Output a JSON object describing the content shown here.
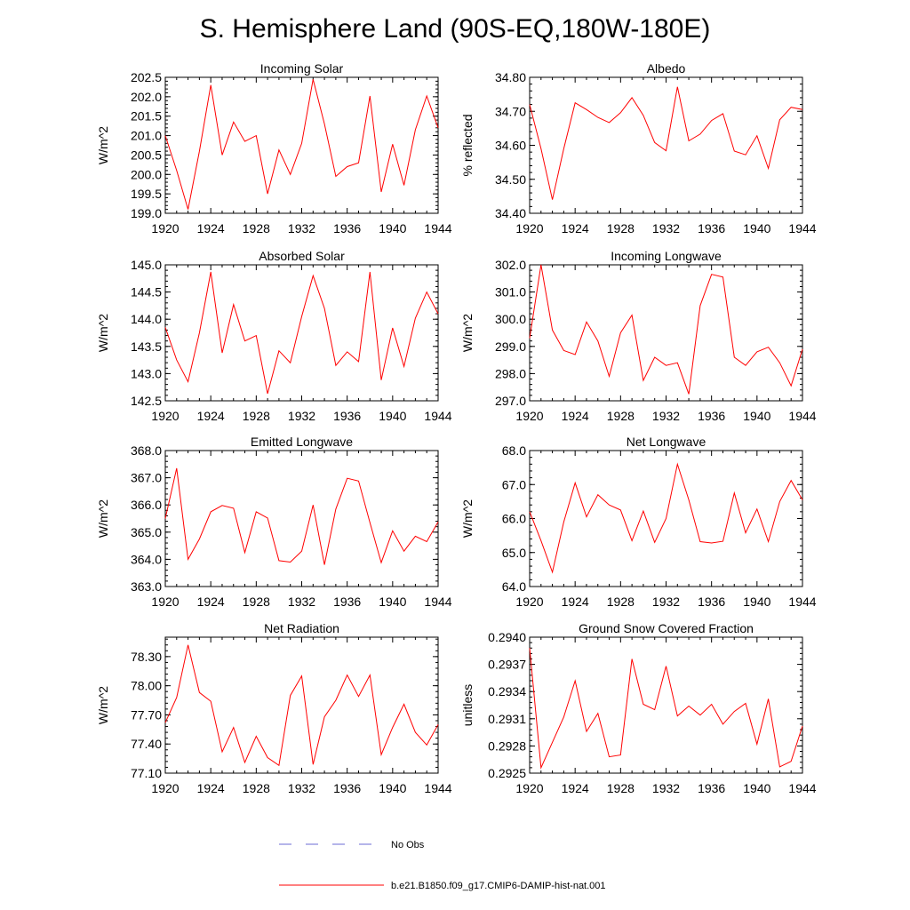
{
  "figure": {
    "title": "S. Hemisphere Land (90S-EQ,180W-180E)"
  },
  "legend": {
    "items": [
      {
        "label": "No Obs",
        "color": "#6b6bd6",
        "dashed": true
      },
      {
        "label": "b.e21.B1850.f09_g17.CMIP6-DAMIP-hist-nat.001",
        "color": "#ff0000",
        "dashed": false
      }
    ]
  },
  "chart_data": [
    {
      "type": "line",
      "title": "Incoming Solar",
      "ylabel": "W/m^2",
      "xlabel": "",
      "x": [
        1920,
        1921,
        1922,
        1923,
        1924,
        1925,
        1926,
        1927,
        1928,
        1929,
        1930,
        1931,
        1932,
        1933,
        1934,
        1935,
        1936,
        1937,
        1938,
        1939,
        1940,
        1941,
        1942,
        1943,
        1944
      ],
      "xlim": [
        1920,
        1944
      ],
      "xticks": [
        1920,
        1924,
        1928,
        1932,
        1936,
        1940,
        1944
      ],
      "ylim": [
        199.0,
        202.5
      ],
      "yticks": [
        199.0,
        199.5,
        200.0,
        200.5,
        201.0,
        201.5,
        202.0,
        202.5
      ],
      "yticklabels": [
        "199.0",
        "199.5",
        "200.0",
        "200.5",
        "201.0",
        "201.5",
        "202.0",
        "202.5"
      ],
      "series": [
        {
          "color": "#ff0000",
          "values": [
            201.0,
            200.1,
            199.1,
            200.6,
            202.3,
            200.5,
            201.35,
            200.85,
            201.0,
            199.5,
            200.63,
            200.0,
            200.8,
            202.45,
            201.3,
            199.95,
            200.2,
            200.3,
            202.02,
            199.55,
            200.78,
            199.72,
            201.15,
            202.02,
            201.2
          ]
        }
      ]
    },
    {
      "type": "line",
      "title": "Albedo",
      "ylabel": "% reflected",
      "xlabel": "",
      "x": [
        1920,
        1921,
        1922,
        1923,
        1924,
        1925,
        1926,
        1927,
        1928,
        1929,
        1930,
        1931,
        1932,
        1933,
        1934,
        1935,
        1936,
        1937,
        1938,
        1939,
        1940,
        1941,
        1942,
        1943,
        1944
      ],
      "xlim": [
        1920,
        1944
      ],
      "xticks": [
        1920,
        1924,
        1928,
        1932,
        1936,
        1940,
        1944
      ],
      "ylim": [
        34.4,
        34.8
      ],
      "yticks": [
        34.4,
        34.5,
        34.6,
        34.7,
        34.8
      ],
      "yticklabels": [
        "34.40",
        "34.50",
        "34.60",
        "34.70",
        "34.80"
      ],
      "series": [
        {
          "color": "#ff0000",
          "values": [
            34.72,
            34.59,
            34.44,
            34.59,
            34.725,
            34.705,
            34.682,
            34.667,
            34.696,
            34.74,
            34.688,
            34.608,
            34.584,
            34.772,
            34.613,
            34.633,
            34.673,
            34.693,
            34.583,
            34.572,
            34.628,
            34.532,
            34.675,
            34.712,
            34.705
          ]
        }
      ]
    },
    {
      "type": "line",
      "title": "Absorbed Solar",
      "ylabel": "W/m^2",
      "xlabel": "",
      "x": [
        1920,
        1921,
        1922,
        1923,
        1924,
        1925,
        1926,
        1927,
        1928,
        1929,
        1930,
        1931,
        1932,
        1933,
        1934,
        1935,
        1936,
        1937,
        1938,
        1939,
        1940,
        1941,
        1942,
        1943,
        1944
      ],
      "xlim": [
        1920,
        1944
      ],
      "xticks": [
        1920,
        1924,
        1928,
        1932,
        1936,
        1940,
        1944
      ],
      "ylim": [
        142.5,
        145.0
      ],
      "yticks": [
        142.5,
        143.0,
        143.5,
        144.0,
        144.5,
        145.0
      ],
      "yticklabels": [
        "142.5",
        "143.0",
        "143.5",
        "144.0",
        "144.5",
        "145.0"
      ],
      "series": [
        {
          "color": "#ff0000",
          "values": [
            143.85,
            143.25,
            142.85,
            143.75,
            144.87,
            143.38,
            144.27,
            143.6,
            143.7,
            142.63,
            143.42,
            143.2,
            144.05,
            144.8,
            144.2,
            143.15,
            143.4,
            143.22,
            144.87,
            142.88,
            143.84,
            143.13,
            144.02,
            144.5,
            144.1
          ]
        }
      ]
    },
    {
      "type": "line",
      "title": "Incoming Longwave",
      "ylabel": "W/m^2",
      "xlabel": "",
      "x": [
        1920,
        1921,
        1922,
        1923,
        1924,
        1925,
        1926,
        1927,
        1928,
        1929,
        1930,
        1931,
        1932,
        1933,
        1934,
        1935,
        1936,
        1937,
        1938,
        1939,
        1940,
        1941,
        1942,
        1943,
        1944
      ],
      "xlim": [
        1920,
        1944
      ],
      "xticks": [
        1920,
        1924,
        1928,
        1932,
        1936,
        1940,
        1944
      ],
      "ylim": [
        297.0,
        302.0
      ],
      "yticks": [
        297.0,
        298.0,
        299.0,
        300.0,
        301.0,
        302.0
      ],
      "yticklabels": [
        "297.0",
        "298.0",
        "299.0",
        "300.0",
        "301.0",
        "302.0"
      ],
      "series": [
        {
          "color": "#ff0000",
          "values": [
            299.3,
            302.0,
            299.6,
            298.85,
            298.7,
            299.9,
            299.2,
            297.9,
            299.5,
            300.15,
            297.75,
            298.6,
            298.3,
            298.4,
            297.25,
            300.5,
            301.65,
            301.55,
            298.6,
            298.3,
            298.8,
            298.97,
            298.4,
            297.55,
            298.9
          ]
        }
      ]
    },
    {
      "type": "line",
      "title": "Emitted Longwave",
      "ylabel": "W/m^2",
      "xlabel": "",
      "x": [
        1920,
        1921,
        1922,
        1923,
        1924,
        1925,
        1926,
        1927,
        1928,
        1929,
        1930,
        1931,
        1932,
        1933,
        1934,
        1935,
        1936,
        1937,
        1938,
        1939,
        1940,
        1941,
        1942,
        1943,
        1944
      ],
      "xlim": [
        1920,
        1944
      ],
      "xticks": [
        1920,
        1924,
        1928,
        1932,
        1936,
        1940,
        1944
      ],
      "ylim": [
        363.0,
        368.0
      ],
      "yticks": [
        363.0,
        364.0,
        365.0,
        366.0,
        367.0,
        368.0
      ],
      "yticklabels": [
        "363.0",
        "364.0",
        "365.0",
        "366.0",
        "367.0",
        "368.0"
      ],
      "series": [
        {
          "color": "#ff0000",
          "values": [
            365.5,
            367.35,
            364.0,
            364.75,
            365.75,
            365.98,
            365.88,
            364.25,
            365.75,
            365.52,
            363.95,
            363.9,
            364.3,
            366.0,
            363.8,
            365.85,
            366.98,
            366.88,
            365.35,
            363.88,
            365.05,
            364.3,
            364.85,
            364.65,
            365.38
          ]
        }
      ]
    },
    {
      "type": "line",
      "title": "Net Longwave",
      "ylabel": "W/m^2",
      "xlabel": "",
      "x": [
        1920,
        1921,
        1922,
        1923,
        1924,
        1925,
        1926,
        1927,
        1928,
        1929,
        1930,
        1931,
        1932,
        1933,
        1934,
        1935,
        1936,
        1937,
        1938,
        1939,
        1940,
        1941,
        1942,
        1943,
        1944
      ],
      "xlim": [
        1920,
        1944
      ],
      "xticks": [
        1920,
        1924,
        1928,
        1932,
        1936,
        1940,
        1944
      ],
      "ylim": [
        64.0,
        68.0
      ],
      "yticks": [
        64.0,
        65.0,
        66.0,
        67.0,
        68.0
      ],
      "yticklabels": [
        "64.0",
        "65.0",
        "66.0",
        "67.0",
        "68.0"
      ],
      "series": [
        {
          "color": "#ff0000",
          "values": [
            66.2,
            65.35,
            64.42,
            65.9,
            67.05,
            66.05,
            66.7,
            66.4,
            66.25,
            65.35,
            66.22,
            65.3,
            66.0,
            67.6,
            66.55,
            65.32,
            65.28,
            65.33,
            66.75,
            65.58,
            66.28,
            65.32,
            66.5,
            67.12,
            66.55
          ]
        }
      ]
    },
    {
      "type": "line",
      "title": "Net Radiation",
      "ylabel": "W/m^2",
      "xlabel": "",
      "x": [
        1920,
        1921,
        1922,
        1923,
        1924,
        1925,
        1926,
        1927,
        1928,
        1929,
        1930,
        1931,
        1932,
        1933,
        1934,
        1935,
        1936,
        1937,
        1938,
        1939,
        1940,
        1941,
        1942,
        1943,
        1944
      ],
      "xlim": [
        1920,
        1944
      ],
      "xticks": [
        1920,
        1924,
        1928,
        1932,
        1936,
        1940,
        1944
      ],
      "ylim": [
        77.1,
        78.5
      ],
      "yticks": [
        77.1,
        77.4,
        77.7,
        78.0,
        78.3
      ],
      "yticklabels": [
        "77.10",
        "77.40",
        "77.70",
        "78.00",
        "78.30"
      ],
      "series": [
        {
          "color": "#ff0000",
          "values": [
            77.62,
            77.88,
            78.42,
            77.93,
            77.84,
            77.32,
            77.57,
            77.21,
            77.48,
            77.26,
            77.18,
            77.9,
            78.1,
            77.19,
            77.68,
            77.85,
            78.11,
            77.89,
            78.11,
            77.29,
            77.57,
            77.81,
            77.52,
            77.39,
            77.6
          ]
        }
      ]
    },
    {
      "type": "line",
      "title": "Ground Snow Covered Fraction",
      "ylabel": "unitless",
      "xlabel": "",
      "x": [
        1920,
        1921,
        1922,
        1923,
        1924,
        1925,
        1926,
        1927,
        1928,
        1929,
        1930,
        1931,
        1932,
        1933,
        1934,
        1935,
        1936,
        1937,
        1938,
        1939,
        1940,
        1941,
        1942,
        1943,
        1944
      ],
      "xlim": [
        1920,
        1944
      ],
      "xticks": [
        1920,
        1924,
        1928,
        1932,
        1936,
        1940,
        1944
      ],
      "ylim": [
        0.2925,
        0.294
      ],
      "yticks": [
        0.2925,
        0.2928,
        0.2931,
        0.2934,
        0.2937,
        0.294
      ],
      "yticklabels": [
        "0.2925",
        "0.2928",
        "0.2931",
        "0.2934",
        "0.2937",
        "0.2940"
      ],
      "series": [
        {
          "color": "#ff0000",
          "values": [
            0.29388,
            0.29256,
            0.29284,
            0.29312,
            0.29352,
            0.29296,
            0.29316,
            0.29268,
            0.2927,
            0.29376,
            0.29326,
            0.2932,
            0.29368,
            0.29313,
            0.29324,
            0.29314,
            0.29326,
            0.29304,
            0.29318,
            0.29327,
            0.29282,
            0.29332,
            0.29257,
            0.29263,
            0.29302
          ]
        }
      ]
    }
  ]
}
